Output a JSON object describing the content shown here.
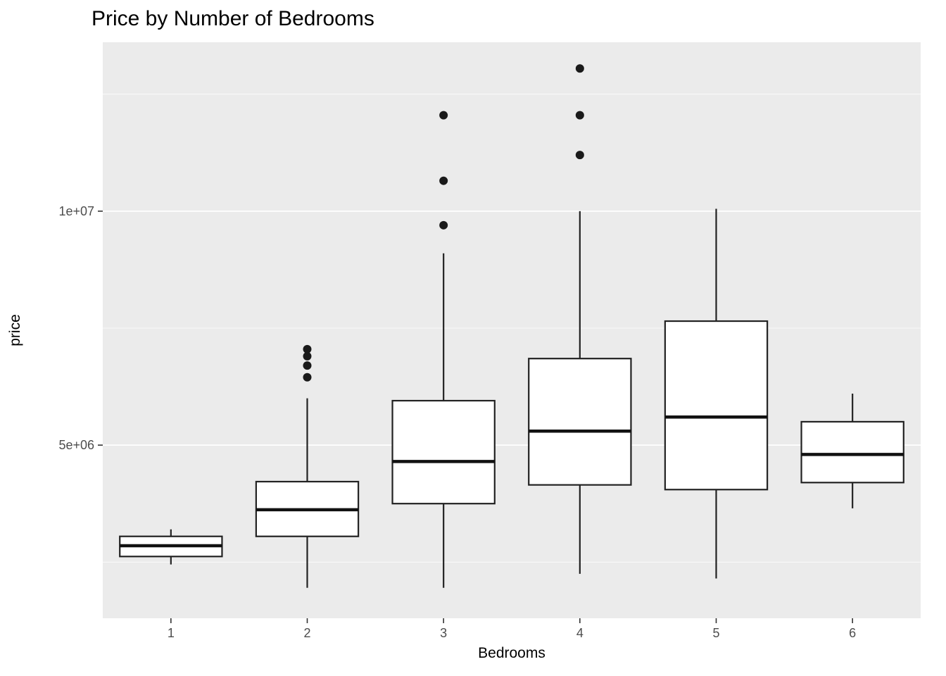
{
  "chart_data": {
    "type": "boxplot",
    "title": "Price by Number of Bedrooms",
    "xlabel": "Bedrooms",
    "ylabel": "price",
    "categories": [
      "1",
      "2",
      "3",
      "4",
      "5",
      "6"
    ],
    "ylim": [
      1300000,
      13610000
    ],
    "grid": true,
    "legend": "none",
    "y_axis": {
      "major_ticks": [
        {
          "value": 5000000,
          "label": "5e+06"
        },
        {
          "value": 10000000,
          "label": "1e+07"
        }
      ],
      "minor_gridlines": [
        2500000,
        7500000,
        12500000
      ]
    },
    "series": [
      {
        "category": "1",
        "min": 2450000,
        "q1": 2620000,
        "median": 2850000,
        "q3": 3050000,
        "max": 3200000,
        "outliers": []
      },
      {
        "category": "2",
        "min": 1950000,
        "q1": 3050000,
        "median": 3620000,
        "q3": 4220000,
        "max": 6000000,
        "outliers": [
          6450000,
          6700000,
          6900000,
          7050000
        ]
      },
      {
        "category": "3",
        "min": 1950000,
        "q1": 3750000,
        "median": 4650000,
        "q3": 5950000,
        "max": 9100000,
        "outliers": [
          9700000,
          10650000,
          12050000
        ]
      },
      {
        "category": "4",
        "min": 2250000,
        "q1": 4150000,
        "median": 5300000,
        "q3": 6850000,
        "max": 10000000,
        "outliers": [
          11200000,
          12050000,
          13050000
        ]
      },
      {
        "category": "5",
        "min": 2150000,
        "q1": 4050000,
        "median": 5600000,
        "q3": 7650000,
        "max": 10050000,
        "outliers": []
      },
      {
        "category": "6",
        "min": 3650000,
        "q1": 4200000,
        "median": 4800000,
        "q3": 5500000,
        "max": 6100000,
        "outliers": []
      }
    ],
    "colors": {
      "panel_background": "#EBEBEB",
      "gridline": "#FFFFFF",
      "box_fill": "#FFFFFF",
      "box_stroke": "#222222",
      "median_stroke": "#111111",
      "outlier_fill": "#1A1A1A",
      "axis_text": "#4D4D4D",
      "tick_mark": "#333333"
    }
  }
}
